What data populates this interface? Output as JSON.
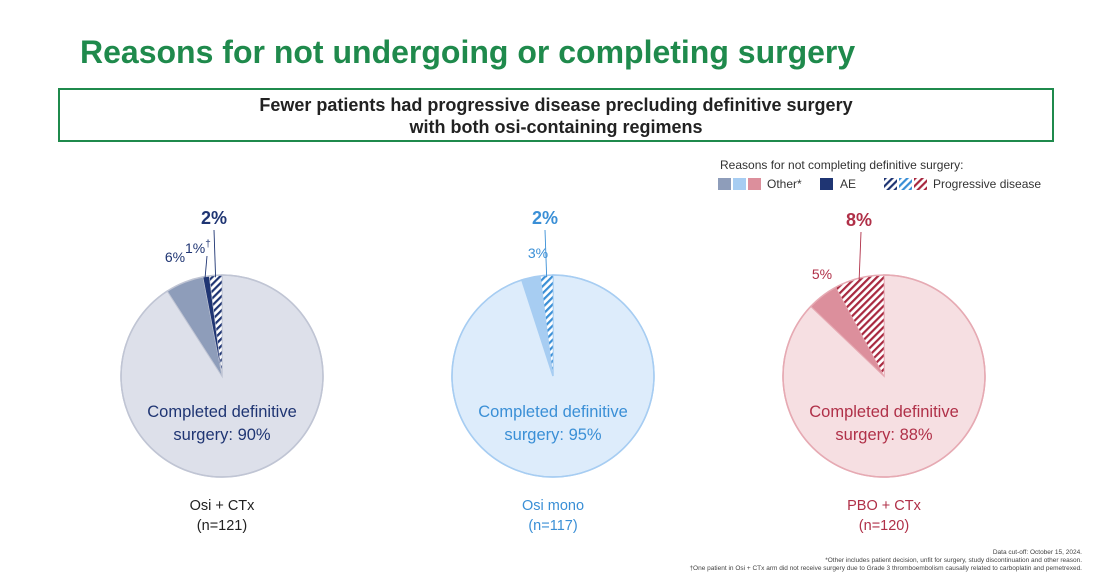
{
  "title": "Reasons for not undergoing or completing surgery",
  "callout": {
    "line1": "Fewer patients had progressive disease precluding definitive surgery",
    "line2": "with both osi-containing regimens"
  },
  "legend": {
    "title": "Reasons for not completing definitive surgery:",
    "items": [
      {
        "label": "Other*",
        "swatches": [
          "#8e9dba",
          "#a7cdf2",
          "#dc8f9c"
        ]
      },
      {
        "label": "AE",
        "swatches": [
          "#1f3573"
        ]
      },
      {
        "label": "Progressive disease",
        "swatches": [
          "hatch-navy",
          "hatch-blue",
          "hatch-red"
        ]
      }
    ]
  },
  "chart_data": [
    {
      "type": "pie",
      "group": "Osi + CTx",
      "n_label": "(n=121)",
      "center_label": [
        "Completed definitive",
        "surgery: 90%"
      ],
      "slices": [
        {
          "name": "Completed definitive surgery",
          "value": 90
        },
        {
          "name": "Other*",
          "value": 6,
          "label": "6%"
        },
        {
          "name": "AE",
          "value": 1,
          "label": "1%",
          "superscript": "†"
        },
        {
          "name": "Progressive disease",
          "value": 2,
          "label": "2%"
        }
      ],
      "colors": {
        "main": "#dde0ea",
        "main_stroke": "#c0c5d4",
        "other": "#8e9dba",
        "ae": "#1f3573",
        "pd": "#1f3573",
        "label": "#1f3573"
      }
    },
    {
      "type": "pie",
      "group": "Osi mono",
      "n_label": "(n=117)",
      "center_label": [
        "Completed definitive",
        "surgery: 95%"
      ],
      "slices": [
        {
          "name": "Completed definitive surgery",
          "value": 95
        },
        {
          "name": "Other*",
          "value": 3,
          "label": "3%"
        },
        {
          "name": "Progressive disease",
          "value": 2,
          "label": "2%"
        }
      ],
      "colors": {
        "main": "#ddecfb",
        "main_stroke": "#a7cdf2",
        "other": "#a7cdf2",
        "pd": "#3a8fd6",
        "label": "#3a8fd6"
      }
    },
    {
      "type": "pie",
      "group": "PBO + CTx",
      "n_label": "(n=120)",
      "center_label": [
        "Completed definitive",
        "surgery: 88%"
      ],
      "slices": [
        {
          "name": "Completed definitive surgery",
          "value": 88
        },
        {
          "name": "Other*",
          "value": 5,
          "label": "5%"
        },
        {
          "name": "Progressive disease",
          "value": 8,
          "label": "8%"
        }
      ],
      "colors": {
        "main": "#f6dfe2",
        "main_stroke": "#e6aab3",
        "other": "#dc8f9c",
        "pd": "#a8283f",
        "label": "#b03048"
      }
    }
  ],
  "footnotes": [
    "Data cut-off: October 15, 2024.",
    "*Other includes patient decision, unfit for surgery, study discontinuation and other reason.",
    "†One patient in Osi + CTx arm did not receive surgery due to Grade 3 thromboembolism causally related to carboplatin and pemetrexed."
  ]
}
